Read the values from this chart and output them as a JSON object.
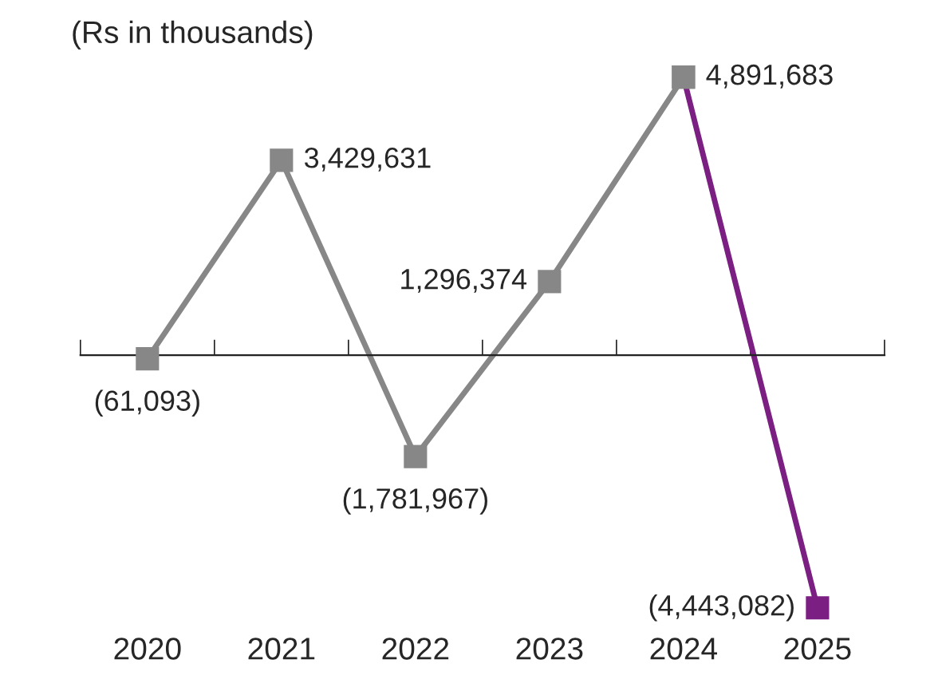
{
  "chart_data": {
    "type": "line",
    "title": "(Rs in thousands)",
    "categories": [
      "2020",
      "2021",
      "2022",
      "2023",
      "2024",
      "2025"
    ],
    "series": [
      {
        "color": "#878787",
        "values": [
          -61093,
          3429631,
          -1781967,
          1296374,
          4891683,
          null
        ],
        "value_labels": [
          "(61,093)",
          "3,429,631",
          "(1,781,967)",
          "1,296,374",
          "4,891,683",
          null
        ]
      },
      {
        "color": "#7b1f82",
        "values": [
          null,
          null,
          null,
          null,
          4891683,
          -4443082
        ],
        "colors": [
          null,
          null,
          null,
          null,
          "#878787",
          "#7b1f82"
        ],
        "value_labels": [
          null,
          null,
          null,
          null,
          null,
          "(4,443,082)"
        ]
      }
    ],
    "marker": "square",
    "line_style": "solid",
    "grid": false,
    "legend": false
  }
}
